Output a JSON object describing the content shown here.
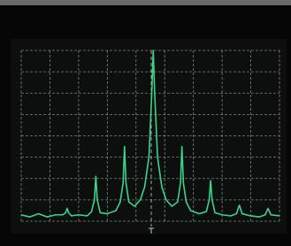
{
  "chart_data": {
    "type": "line",
    "x": [
      0,
      0.3,
      0.6,
      0.9,
      1.2,
      1.45,
      1.55,
      1.6,
      1.65,
      1.75,
      2.0,
      2.3,
      2.45,
      2.55,
      2.6,
      2.65,
      2.75,
      3.0,
      3.3,
      3.45,
      3.55,
      3.6,
      3.65,
      3.75,
      3.95,
      4.15,
      4.3,
      4.45,
      4.55,
      4.6,
      4.65,
      4.75,
      4.9,
      5.05,
      5.25,
      5.45,
      5.55,
      5.6,
      5.65,
      5.75,
      5.9,
      6.2,
      6.45,
      6.55,
      6.6,
      6.65,
      6.75,
      7.0,
      7.3,
      7.5,
      7.6,
      7.7,
      8.0,
      8.3,
      8.5,
      8.6,
      8.7,
      9.0
    ],
    "series": [
      {
        "color": "#3fd08c",
        "values": [
          0.3,
          0.2,
          0.35,
          0.2,
          0.3,
          0.3,
          0.4,
          0.6,
          0.4,
          0.25,
          0.3,
          0.25,
          0.45,
          1.0,
          2.1,
          1.0,
          0.4,
          0.35,
          0.5,
          0.9,
          1.8,
          3.5,
          1.8,
          0.9,
          0.7,
          1.0,
          1.6,
          3.0,
          6.0,
          8.0,
          6.0,
          3.0,
          1.6,
          1.0,
          0.7,
          0.9,
          1.8,
          3.5,
          1.8,
          0.9,
          0.5,
          0.35,
          0.45,
          1.0,
          1.9,
          1.0,
          0.4,
          0.3,
          0.25,
          0.35,
          0.75,
          0.35,
          0.25,
          0.2,
          0.3,
          0.6,
          0.3,
          0.25
        ]
      }
    ],
    "xlim": [
      0,
      9
    ],
    "ylim": [
      0,
      8
    ],
    "xticks": [
      0,
      1,
      2,
      3,
      4,
      5,
      6,
      7,
      8,
      9
    ],
    "yticks": [
      0,
      1,
      2,
      3,
      4,
      5,
      6,
      7,
      8
    ],
    "grid": true
  }
}
